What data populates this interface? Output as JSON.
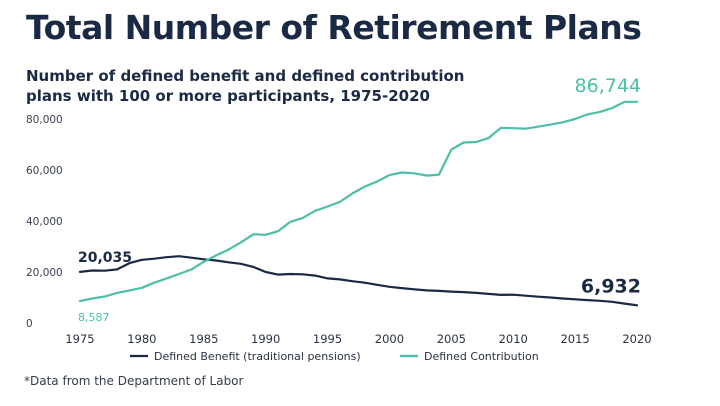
{
  "chart_data": {
    "type": "line",
    "title": "Total Number of Retirement Plans",
    "subtitle": "Number of defined benefit and defined contribution plans with 100 or more participants, 1975-2020",
    "footnote": "*Data from the Department of Labor",
    "xlabel": "",
    "ylabel": "",
    "xlim": [
      1975,
      2020
    ],
    "ylim": [
      0,
      80000
    ],
    "x_ticks": [
      "1975",
      "1980",
      "1985",
      "1990",
      "1995",
      "2000",
      "2005",
      "2010",
      "2015",
      "2020"
    ],
    "y_ticks": [
      "0",
      "20,000",
      "40,000",
      "60,000",
      "80,000"
    ],
    "legend_position": "bottom",
    "series": [
      {
        "name": "Defined Benefit (traditional pensions)",
        "color": "#1b2a44",
        "x": [
          1975,
          1976,
          1977,
          1978,
          1979,
          1980,
          1981,
          1982,
          1983,
          1984,
          1985,
          1986,
          1987,
          1988,
          1989,
          1990,
          1991,
          1992,
          1993,
          1994,
          1995,
          1996,
          1997,
          1998,
          1999,
          2000,
          2001,
          2002,
          2003,
          2004,
          2005,
          2006,
          2007,
          2008,
          2009,
          2010,
          2011,
          2012,
          2013,
          2014,
          2015,
          2016,
          2017,
          2018,
          2019,
          2020
        ],
        "y": [
          20035,
          20600,
          20500,
          21000,
          23500,
          24800,
          25200,
          25800,
          26200,
          25600,
          25000,
          24500,
          23800,
          23200,
          22000,
          20000,
          19000,
          19200,
          19100,
          18600,
          17500,
          17100,
          16400,
          15800,
          15000,
          14200,
          13700,
          13200,
          12800,
          12600,
          12300,
          12100,
          11800,
          11400,
          11000,
          11100,
          10700,
          10300,
          10000,
          9600,
          9300,
          9000,
          8700,
          8300,
          7600,
          6932
        ]
      },
      {
        "name": "Defined Contribution",
        "color": "#4cbfa6",
        "x": [
          1975,
          1976,
          1977,
          1978,
          1979,
          1980,
          1981,
          1982,
          1983,
          1984,
          1985,
          1986,
          1987,
          1988,
          1989,
          1990,
          1991,
          1992,
          1993,
          1994,
          1995,
          1996,
          1997,
          1998,
          1999,
          2000,
          2001,
          2002,
          2003,
          2004,
          2005,
          2006,
          2007,
          2008,
          2009,
          2010,
          2011,
          2012,
          2013,
          2014,
          2015,
          2016,
          2017,
          2018,
          2019,
          2020
        ],
        "y": [
          8587,
          9600,
          10400,
          11800,
          12800,
          13800,
          15800,
          17500,
          19200,
          21000,
          24000,
          26500,
          28800,
          31600,
          34800,
          34600,
          36000,
          39700,
          41200,
          44000,
          45700,
          47500,
          50800,
          53500,
          55500,
          58000,
          59000,
          58700,
          57800,
          58200,
          68000,
          70800,
          71000,
          72500,
          76500,
          76400,
          76200,
          77000,
          77800,
          78700,
          80000,
          81800,
          82800,
          84300,
          86744,
          86744
        ]
      }
    ],
    "annotations": [
      {
        "text": "20,035",
        "series": 0,
        "x": 1975,
        "color": "#1b2a44"
      },
      {
        "text": "8,587",
        "series": 1,
        "x": 1975,
        "color": "#4cbfa6"
      },
      {
        "text": "86,744",
        "series": 1,
        "x": 2020,
        "color": "#4cbfa6"
      },
      {
        "text": "6,932",
        "series": 0,
        "x": 2020,
        "color": "#1b2a44"
      }
    ]
  }
}
